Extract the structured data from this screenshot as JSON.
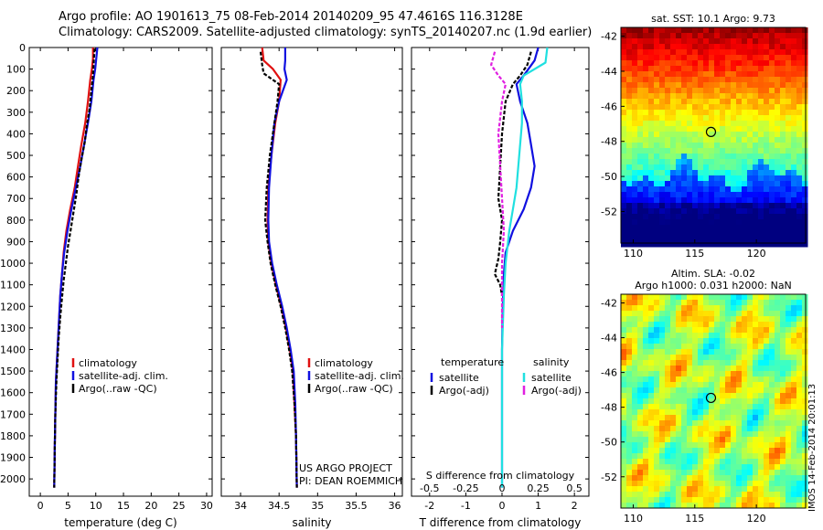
{
  "header": {
    "line1": "Argo profile: AO 1901613_75 08-Feb-2014 20140209_95 47.4616S 116.3128E",
    "line2": "Climatology: CARS2009. Satellite-adjusted climatology: synTS_20140207.nc (1.9d earlier)"
  },
  "footer_stamp": "IMOS 14-Feb-2014 20:01:13",
  "colors": {
    "climatology": "#e01010",
    "satellite": "#1010e0",
    "argo": "#000000",
    "sat_salinity": "#20e0e0",
    "argo_salinity": "#e020e0"
  },
  "chart_data": [
    {
      "type": "line",
      "id": "temperature",
      "xlabel": "temperature (deg C)",
      "ylabel": "",
      "xlim": [
        -2,
        31
      ],
      "ylim": [
        2080,
        0
      ],
      "xticks": [
        0,
        5,
        10,
        15,
        20,
        25,
        30
      ],
      "yticks": [
        0,
        100,
        200,
        300,
        400,
        500,
        600,
        700,
        800,
        900,
        1000,
        1100,
        1200,
        1300,
        1400,
        1500,
        1600,
        1700,
        1800,
        1900,
        2000
      ],
      "legend": [
        "climatology",
        "satellite-adj. clim.",
        "Argo(..raw -QC)"
      ],
      "series": [
        {
          "name": "climatology",
          "color": "#e01010",
          "x": [
            9.5,
            9.5,
            9.3,
            9.0,
            8.6,
            8.1,
            7.4,
            6.8,
            6.2,
            5.4,
            4.7,
            4.2,
            3.9,
            3.6,
            3.4,
            3.2,
            3.0,
            2.8,
            2.7,
            2.6,
            2.5
          ],
          "y": [
            0,
            50,
            100,
            150,
            250,
            350,
            450,
            550,
            650,
            750,
            850,
            950,
            1050,
            1150,
            1250,
            1350,
            1450,
            1550,
            1700,
            1850,
            2040
          ]
        },
        {
          "name": "satellite-adj. clim.",
          "color": "#1010e0",
          "x": [
            10.3,
            10.1,
            9.9,
            9.6,
            9.2,
            8.6,
            7.9,
            7.2,
            6.4,
            5.6,
            4.9,
            4.3,
            3.9,
            3.6,
            3.4,
            3.2,
            3.0,
            2.8,
            2.7,
            2.6,
            2.5
          ],
          "y": [
            0,
            50,
            100,
            150,
            250,
            350,
            450,
            550,
            650,
            750,
            850,
            950,
            1050,
            1150,
            1250,
            1350,
            1450,
            1550,
            1700,
            1850,
            2040
          ]
        },
        {
          "name": "Argo(..raw -QC)",
          "color": "#000000",
          "x": [
            9.8,
            9.7,
            9.6,
            9.5,
            9.2,
            8.9,
            8.4,
            8.0,
            7.4,
            6.9,
            6.5,
            6.0,
            5.5,
            5.0,
            4.6,
            4.2,
            3.9,
            3.6,
            3.3,
            3.1,
            2.9,
            2.7,
            2.6,
            2.5
          ],
          "y": [
            5,
            40,
            80,
            130,
            200,
            280,
            360,
            440,
            520,
            600,
            680,
            760,
            840,
            920,
            1000,
            1080,
            1160,
            1250,
            1350,
            1450,
            1550,
            1700,
            1850,
            2040
          ]
        }
      ]
    },
    {
      "type": "line",
      "id": "salinity",
      "xlabel": "salinity",
      "ylabel": "",
      "xlim": [
        33.75,
        36.1
      ],
      "ylim": [
        2080,
        0
      ],
      "xticks": [
        34,
        34.5,
        35,
        35.5,
        36
      ],
      "legend": [
        "climatology",
        "satellite-adj. clim.",
        "Argo(..raw -QC)"
      ],
      "annotation": [
        "US ARGO PROJECT",
        "PI: DEAN ROEMMICH"
      ],
      "series": [
        {
          "name": "climatology",
          "color": "#e01010",
          "x": [
            34.28,
            34.3,
            34.42,
            34.52,
            34.5,
            34.45,
            34.4,
            34.36,
            34.35,
            34.36,
            34.4,
            34.46,
            34.53,
            34.59,
            34.64,
            34.68,
            34.7,
            34.72,
            34.73
          ],
          "y": [
            0,
            60,
            100,
            150,
            250,
            350,
            500,
            650,
            800,
            900,
            1000,
            1100,
            1200,
            1300,
            1400,
            1500,
            1650,
            1800,
            2040
          ]
        },
        {
          "name": "satellite-adj. clim.",
          "color": "#1010e0",
          "x": [
            34.58,
            34.58,
            34.57,
            34.6,
            34.5,
            34.44,
            34.4,
            34.37,
            34.36,
            34.37,
            34.41,
            34.47,
            34.54,
            34.6,
            34.65,
            34.69,
            34.71,
            34.72,
            34.73
          ],
          "y": [
            0,
            60,
            100,
            150,
            250,
            350,
            500,
            650,
            800,
            900,
            1000,
            1100,
            1200,
            1300,
            1400,
            1500,
            1650,
            1800,
            2040
          ]
        },
        {
          "name": "Argo(..raw -QC)",
          "color": "#000000",
          "x": [
            34.26,
            34.28,
            34.3,
            34.5,
            34.48,
            34.44,
            34.38,
            34.34,
            34.32,
            34.35,
            34.39,
            34.45,
            34.52,
            34.58,
            34.63,
            34.67,
            34.7,
            34.72,
            34.73
          ],
          "y": [
            20,
            80,
            120,
            170,
            250,
            350,
            500,
            650,
            800,
            900,
            1000,
            1100,
            1200,
            1300,
            1400,
            1500,
            1650,
            1800,
            2040
          ]
        }
      ]
    },
    {
      "type": "line",
      "id": "differences",
      "xlabel": "T difference from climatology",
      "xlabel_top": "S difference from climatology",
      "xlim": [
        -2.5,
        2.4
      ],
      "ylim": [
        2080,
        0
      ],
      "xticks": [
        -2,
        -1,
        0,
        1,
        2
      ],
      "xticks_top": [
        -0.5,
        -0.25,
        0,
        0.25,
        0.5
      ],
      "legend_temperature_title": "temperature",
      "legend_salinity_title": "salinity",
      "legend": [
        "satellite",
        "Argo(-adj)",
        "satellite",
        "Argo(-adj)"
      ],
      "series": [
        {
          "name": "temperature satellite",
          "color": "#1010e0",
          "x": [
            1.0,
            0.9,
            0.6,
            0.4,
            0.5,
            0.7,
            0.8,
            0.9,
            0.8,
            0.6,
            0.3,
            0.1,
            0.05,
            0.02,
            0.0,
            0.0,
            0.0,
            0.0
          ],
          "y": [
            0,
            60,
            130,
            170,
            250,
            350,
            450,
            550,
            650,
            750,
            850,
            950,
            1050,
            1200,
            1400,
            1600,
            1800,
            2040
          ]
        },
        {
          "name": "temperature Argo(-adj)",
          "color": "#000000",
          "x": [
            0.8,
            0.7,
            0.5,
            0.3,
            0.1,
            0.0,
            -0.05,
            -0.1,
            0.0,
            -0.05,
            -0.1,
            -0.2,
            -0.05,
            0.0
          ],
          "y": [
            20,
            80,
            130,
            170,
            250,
            400,
            550,
            700,
            800,
            900,
            980,
            1050,
            1100,
            1150
          ]
        },
        {
          "name": "salinity satellite",
          "color": "#20e0e0",
          "x": [
            1.25,
            1.2,
            0.6,
            0.5,
            0.55,
            0.55,
            0.5,
            0.45,
            0.4,
            0.3,
            0.2,
            0.1,
            0.05,
            0.0,
            0.0,
            0.0
          ],
          "y": [
            0,
            70,
            130,
            170,
            250,
            350,
            450,
            550,
            650,
            750,
            850,
            1000,
            1150,
            1400,
            1700,
            2040
          ]
        },
        {
          "name": "salinity Argo(-adj)",
          "color": "#e020e0",
          "x": [
            -0.2,
            -0.3,
            -0.1,
            0.1,
            0.0,
            -0.1,
            -0.05,
            0.0,
            0.05,
            0.0,
            0.0,
            0.0
          ],
          "y": [
            20,
            80,
            130,
            170,
            250,
            400,
            550,
            700,
            850,
            1000,
            1150,
            1300
          ]
        }
      ]
    },
    {
      "type": "heatmap",
      "id": "sst_map",
      "title": "sat. SST: 10.1  Argo: 9.73",
      "xlim": [
        109,
        124
      ],
      "ylim": [
        -53.8,
        -41.5
      ],
      "xticks": [
        110,
        115,
        120
      ],
      "yticks": [
        -42,
        -44,
        -46,
        -48,
        -50,
        -52
      ],
      "marker": {
        "lon": 116.3128,
        "lat": -47.4616
      }
    },
    {
      "type": "heatmap",
      "id": "sla_map",
      "title": "Altim. SLA: -0.02",
      "subtitle": "Argo h1000: 0.031 h2000: NaN",
      "xlim": [
        109,
        124
      ],
      "ylim": [
        -53.8,
        -41.5
      ],
      "xticks": [
        110,
        115,
        120
      ],
      "yticks": [
        -42,
        -44,
        -46,
        -48,
        -50,
        -52
      ],
      "marker": {
        "lon": 116.3128,
        "lat": -47.4616
      }
    }
  ]
}
